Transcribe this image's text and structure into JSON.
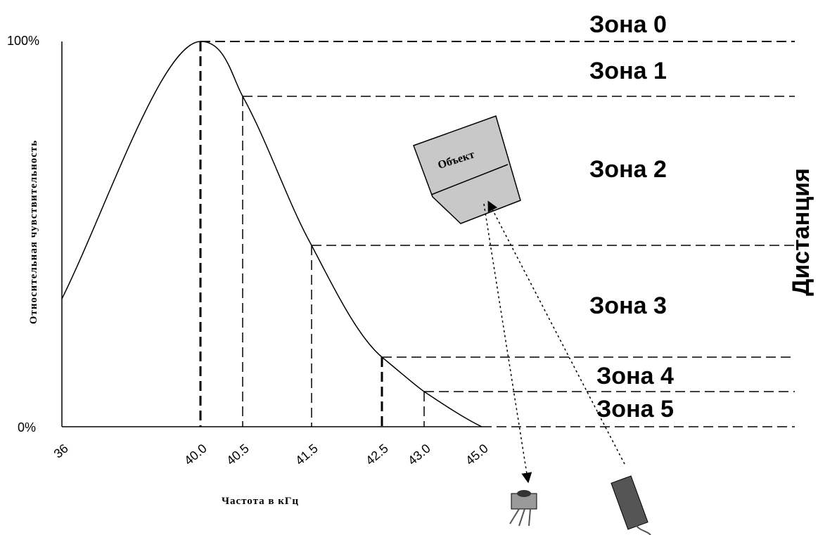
{
  "axis": {
    "y_labels": [
      "100%",
      "0%"
    ],
    "y_title": "Относительная чувствительность",
    "x_labels": [
      "36",
      "40.0",
      "40.5",
      "41.5",
      "42.5",
      "43.0",
      "45.0"
    ],
    "x_title": "Частота в кГц"
  },
  "zones": [
    "Зона 0",
    "Зона 1",
    "Зона 2",
    "Зона 3",
    "Зона 4",
    "Зона 5"
  ],
  "distance_label": "Дистанция",
  "object_label": "Объект"
}
